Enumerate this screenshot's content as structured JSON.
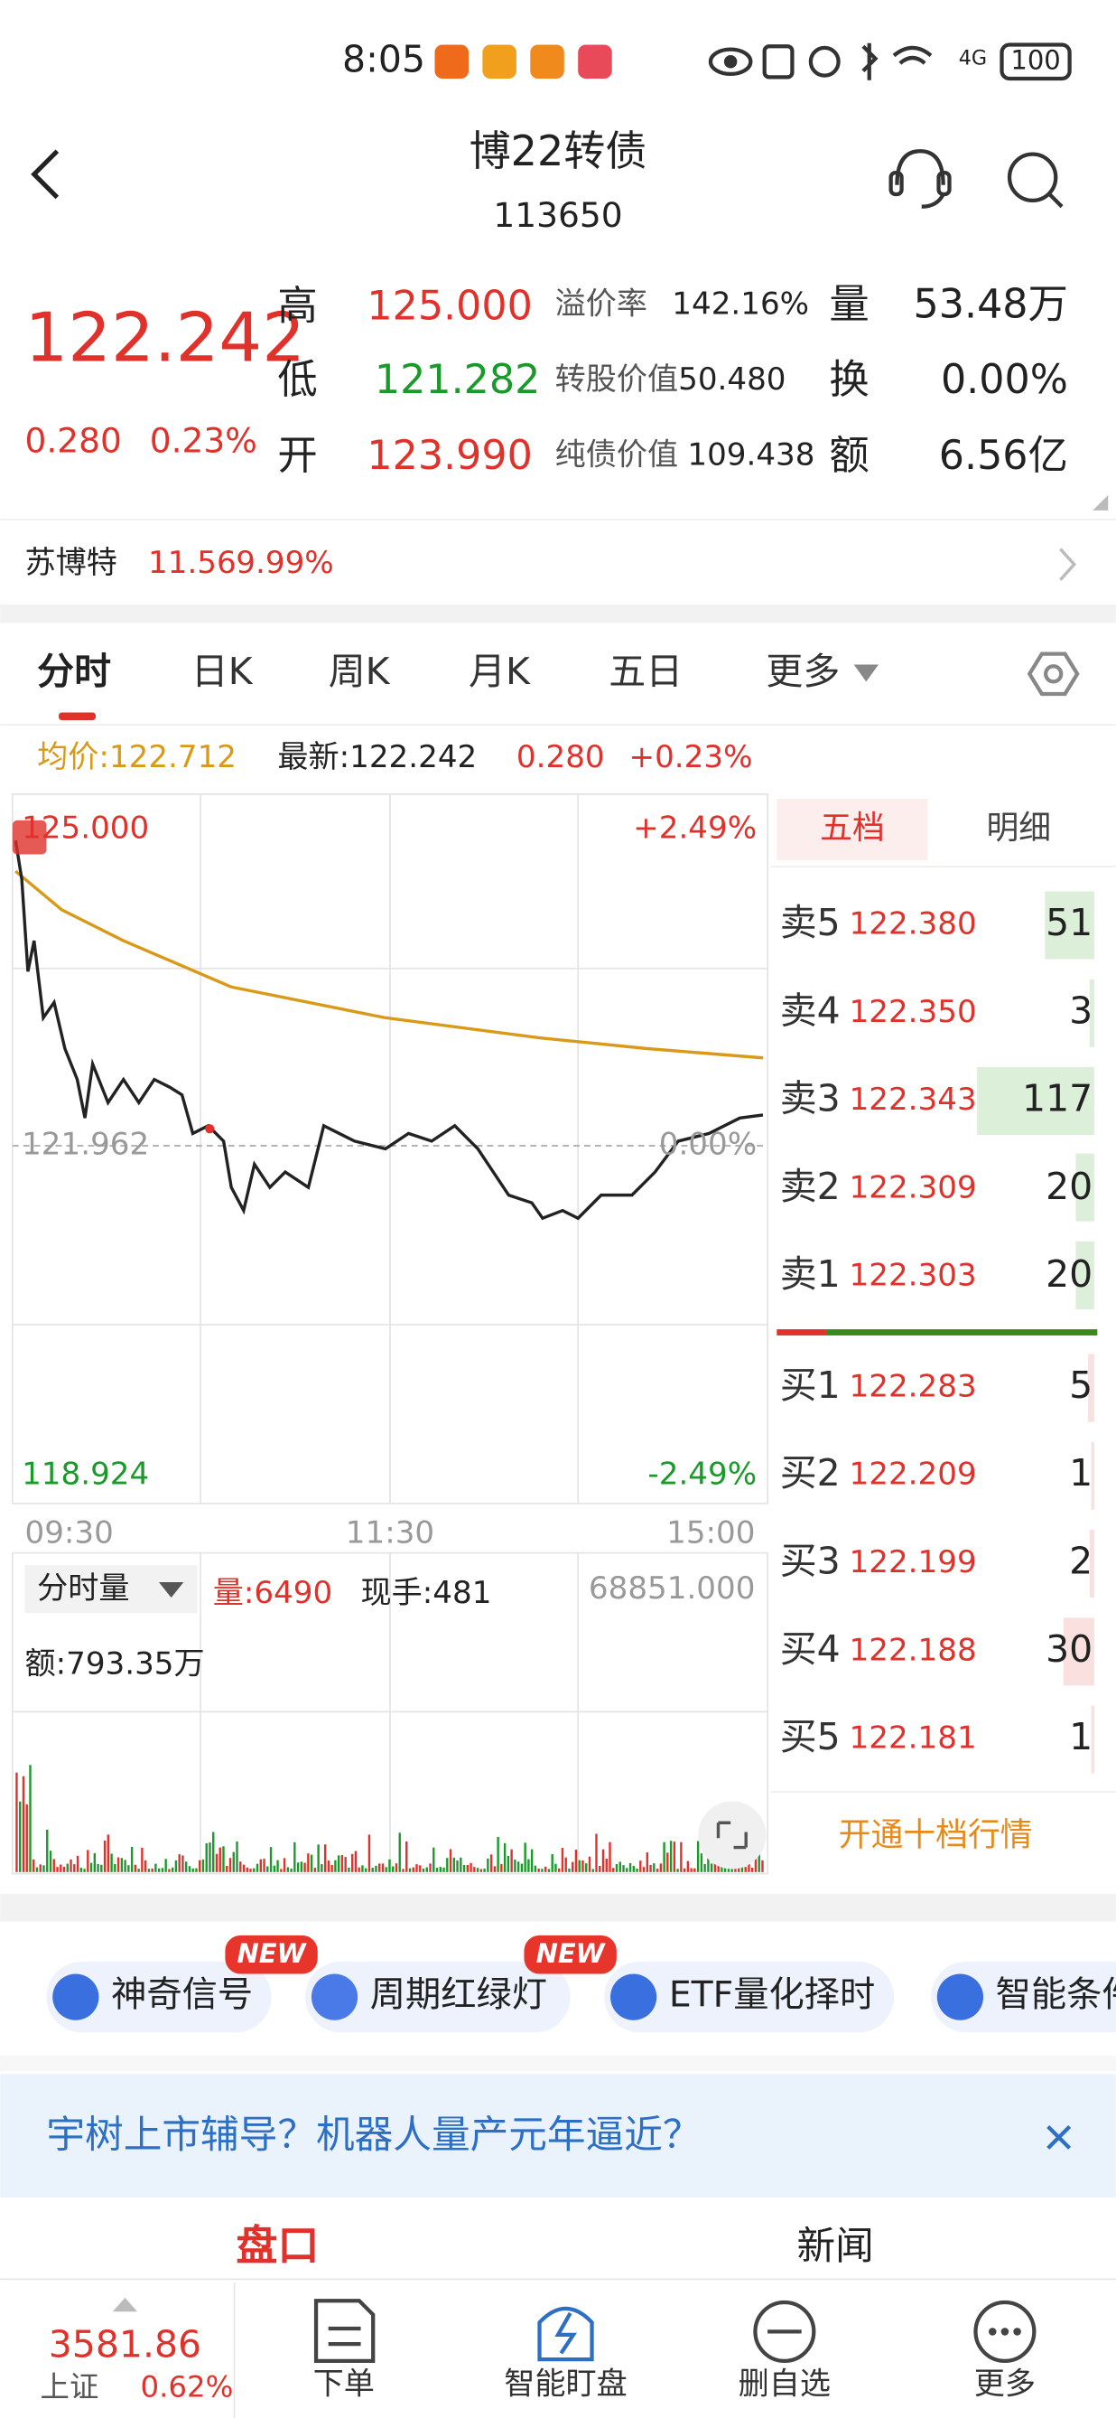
{
  "status_bar": {
    "time": "8:05",
    "battery": "100"
  },
  "header": {
    "title": "博22转债",
    "code": "113650"
  },
  "quote": {
    "price": "122.242",
    "change": "0.280",
    "change_pct": "0.23%",
    "fields": [
      {
        "label": "高",
        "value": "125.000"
      },
      {
        "label": "低",
        "value": "121.282"
      },
      {
        "label": "开",
        "value": "123.990"
      }
    ],
    "metrics": [
      {
        "label": "溢价率",
        "value": "142.16%"
      },
      {
        "label": "转股价值",
        "value": "50.480"
      },
      {
        "label": "纯债价值",
        "value": "109.438"
      }
    ],
    "stats": [
      {
        "label": "量",
        "value": "53.48万"
      },
      {
        "label": "换",
        "value": "0.00%"
      },
      {
        "label": "额",
        "value": "6.56亿"
      }
    ]
  },
  "stock": {
    "name": "苏博特",
    "price": "11.56",
    "pct": "9.99%"
  },
  "tabs": [
    "分时",
    "日K",
    "周K",
    "月K",
    "五日",
    "更多"
  ],
  "chart_info": {
    "avg": "均价:122.712",
    "latest": "最新:122.242",
    "change": "0.280",
    "pct": "+0.23%"
  },
  "chart": {
    "top": "125.000",
    "mid": "121.962",
    "bottom": "118.924",
    "top_pct": "+2.49%",
    "mid_pct": "0.00%",
    "bottom_pct": "-2.49%",
    "times": [
      "09:30",
      "11:30",
      "15:00"
    ]
  },
  "volume": {
    "selector": "分时量",
    "vol": "量:6490",
    "hand": "现手:481",
    "max": "68851.000",
    "amount": "额:793.35万"
  },
  "order_book": {
    "tabs": [
      "五档",
      "明细"
    ],
    "asks": [
      {
        "label": "卖5",
        "price": "122.380",
        "qty": "51"
      },
      {
        "label": "卖4",
        "price": "122.350",
        "qty": "3"
      },
      {
        "label": "卖3",
        "price": "122.343",
        "qty": "117"
      },
      {
        "label": "卖2",
        "price": "122.309",
        "qty": "20"
      },
      {
        "label": "卖1",
        "price": "122.303",
        "qty": "20"
      }
    ],
    "bids": [
      {
        "label": "买1",
        "price": "122.283",
        "qty": "5"
      },
      {
        "label": "买2",
        "price": "122.209",
        "qty": "1"
      },
      {
        "label": "买3",
        "price": "122.199",
        "qty": "2"
      },
      {
        "label": "买4",
        "price": "122.188",
        "qty": "30"
      },
      {
        "label": "买5",
        "price": "122.181",
        "qty": "1"
      }
    ],
    "button": "开通十档行情"
  },
  "features": [
    {
      "label": "神奇信号",
      "badge": "NEW"
    },
    {
      "label": "周期红绿灯",
      "badge": "NEW"
    },
    {
      "label": "ETF量化择时"
    },
    {
      "label": "智能条件"
    }
  ],
  "banner": "宇树上市辅导？机器人量产元年逼近？",
  "sections": [
    "盘口",
    "新闻"
  ],
  "bottom_nav": {
    "index_value": "3581.86",
    "index_name": "上证",
    "index_pct": "0.62%",
    "items": [
      "下单",
      "智能盯盘",
      "删自选",
      "更多"
    ]
  }
}
